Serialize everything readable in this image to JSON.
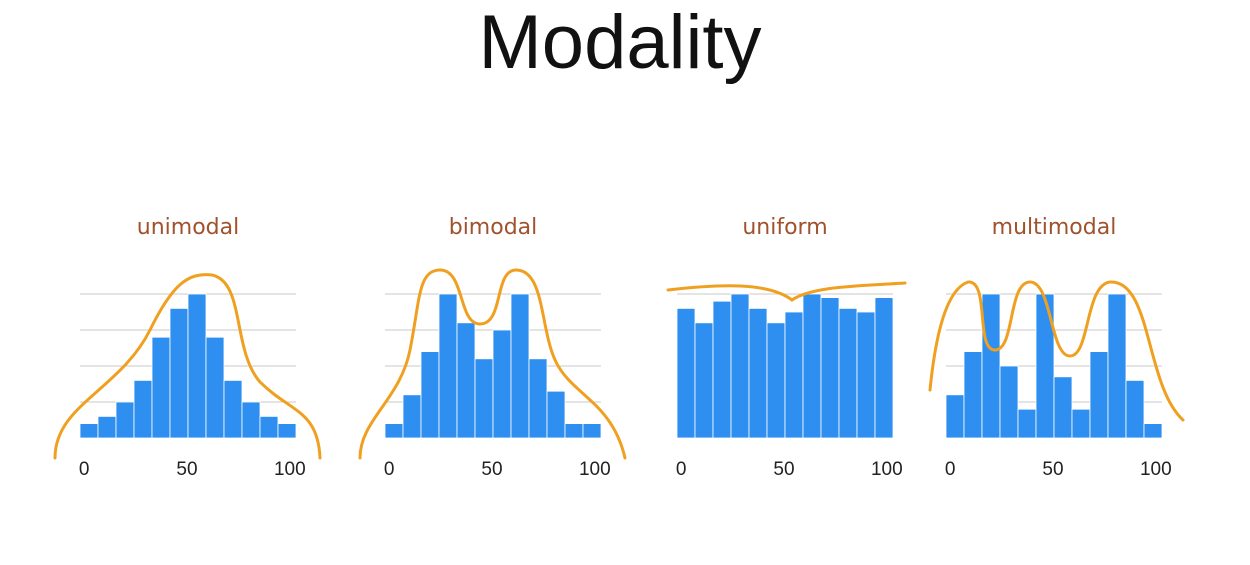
{
  "title": "Modality",
  "chart_data": [
    {
      "type": "histogram",
      "title": "unimodal",
      "color": "#2f8ff0",
      "bins": [
        -2,
        6.75,
        15.5,
        24.25,
        33,
        41.75,
        50.5,
        59.25,
        68,
        76.75,
        85.5,
        94.25,
        103
      ],
      "values": [
        0.4,
        0.6,
        1.0,
        1.6,
        2.8,
        3.6,
        4.0,
        2.8,
        1.6,
        1.0,
        0.6,
        0.4
      ],
      "xlim": [
        -2,
        103
      ],
      "xticks": [
        0,
        50,
        100
      ],
      "ylim": [
        0,
        4
      ],
      "grid_lines": [
        1,
        2,
        3,
        4
      ]
    },
    {
      "type": "histogram",
      "title": "bimodal",
      "color": "#2f8ff0",
      "bins": [
        -2,
        6.75,
        15.5,
        24.25,
        33,
        41.75,
        50.5,
        59.25,
        68,
        76.75,
        85.5,
        94.25,
        103
      ],
      "values": [
        0.4,
        1.2,
        2.4,
        4.0,
        3.2,
        2.2,
        3.0,
        4.0,
        2.2,
        1.3,
        0.4,
        0.4
      ],
      "xlim": [
        -2,
        103
      ],
      "xticks": [
        0,
        50,
        100
      ],
      "ylim": [
        0,
        4
      ],
      "grid_lines": [
        1,
        2,
        3,
        4
      ]
    },
    {
      "type": "histogram",
      "title": "uniform",
      "color": "#2f8ff0",
      "bins": [
        -2,
        6.75,
        15.5,
        24.25,
        33,
        41.75,
        50.5,
        59.25,
        68,
        76.75,
        85.5,
        94.25,
        103
      ],
      "values": [
        3.6,
        3.2,
        3.8,
        4.0,
        3.6,
        3.2,
        3.5,
        4.0,
        3.9,
        3.6,
        3.5,
        3.9
      ],
      "xlim": [
        -2,
        103
      ],
      "xticks": [
        0,
        50,
        100
      ],
      "ylim": [
        0,
        4
      ],
      "grid_lines": [
        1,
        2,
        3,
        4
      ]
    },
    {
      "type": "histogram",
      "title": "multimodal",
      "color": "#2f8ff0",
      "bins": [
        -2,
        6.75,
        15.5,
        24.25,
        33,
        41.75,
        50.5,
        59.25,
        68,
        76.75,
        85.5,
        94.25,
        103
      ],
      "values": [
        1.2,
        2.4,
        4.0,
        2.0,
        0.8,
        4.0,
        1.7,
        0.8,
        2.4,
        4.0,
        1.6,
        0.4
      ],
      "xlim": [
        -2,
        103
      ],
      "xticks": [
        0,
        50,
        100
      ],
      "ylim": [
        0,
        4
      ],
      "grid_lines": [
        1,
        2,
        3,
        4
      ]
    }
  ]
}
